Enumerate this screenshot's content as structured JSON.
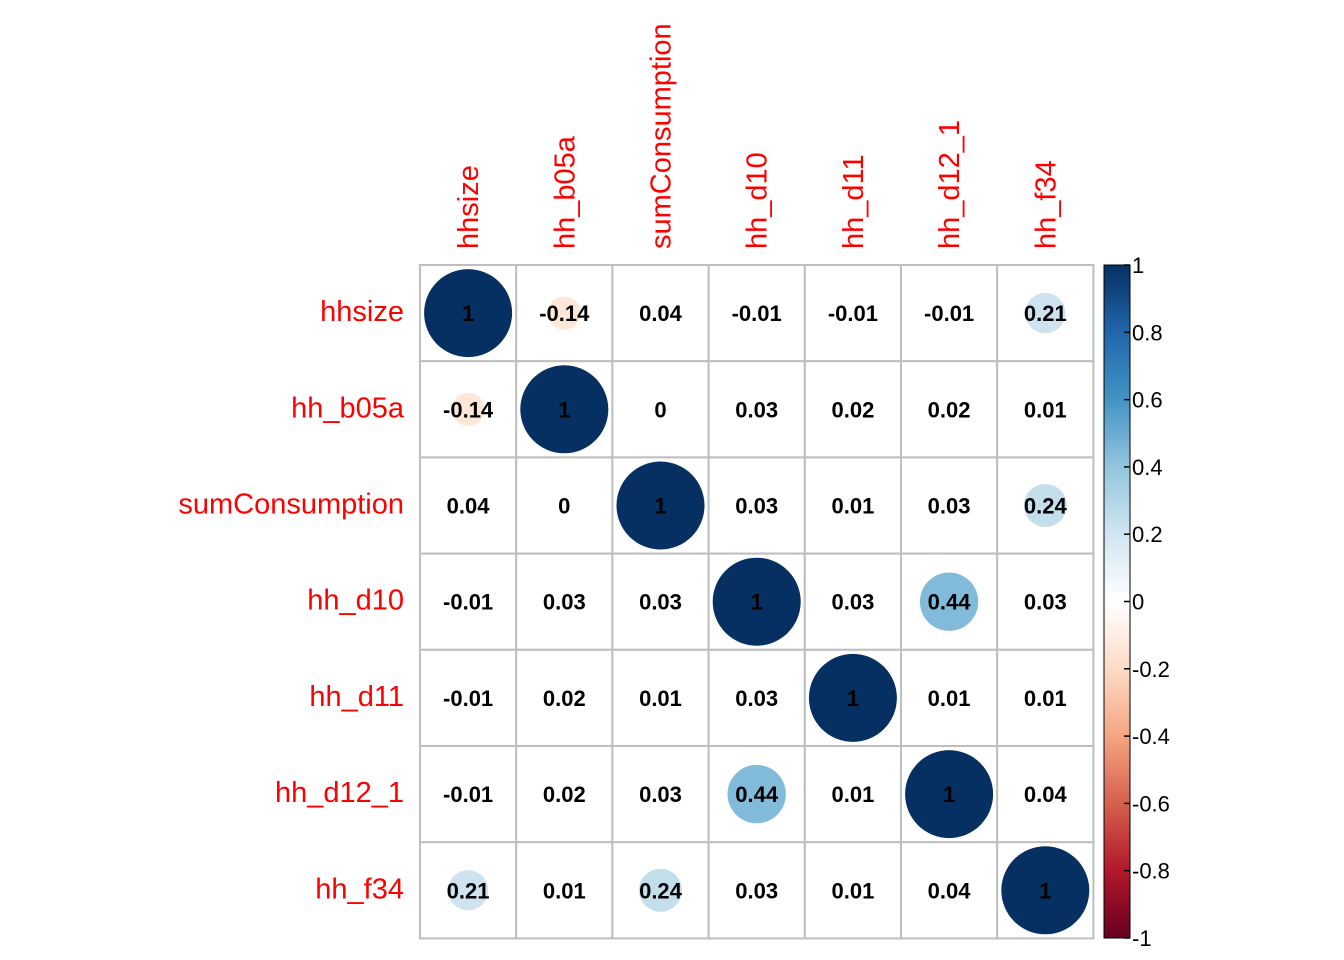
{
  "chart_data": {
    "type": "heatmap",
    "variables": [
      "hhsize",
      "hh_b05a",
      "sumConsumption",
      "hh_d10",
      "hh_d11",
      "hh_d12_1",
      "hh_f34"
    ],
    "value_labels": [
      [
        "1",
        "-0.14",
        "0.04",
        "-0.01",
        "-0.01",
        "-0.01",
        "0.21"
      ],
      [
        "-0.14",
        "1",
        "0",
        "0.03",
        "0.02",
        "0.02",
        "0.01"
      ],
      [
        "0.04",
        "0",
        "1",
        "0.03",
        "0.01",
        "0.03",
        "0.24"
      ],
      [
        "-0.01",
        "0.03",
        "0.03",
        "1",
        "0.03",
        "0.44",
        "0.03"
      ],
      [
        "-0.01",
        "0.02",
        "0.01",
        "0.03",
        "1",
        "0.01",
        "0.01"
      ],
      [
        "-0.01",
        "0.02",
        "0.03",
        "0.44",
        "0.01",
        "1",
        "0.04"
      ],
      [
        "0.21",
        "0.01",
        "0.24",
        "0.03",
        "0.01",
        "0.04",
        "1"
      ]
    ],
    "values": [
      [
        1,
        -0.14,
        0.04,
        -0.01,
        -0.01,
        -0.01,
        0.21
      ],
      [
        -0.14,
        1,
        0,
        0.03,
        0.02,
        0.02,
        0.01
      ],
      [
        0.04,
        0,
        1,
        0.03,
        0.01,
        0.03,
        0.24
      ],
      [
        -0.01,
        0.03,
        0.03,
        1,
        0.03,
        0.44,
        0.03
      ],
      [
        -0.01,
        0.02,
        0.01,
        0.03,
        1,
        0.01,
        0.01
      ],
      [
        -0.01,
        0.02,
        0.03,
        0.44,
        0.01,
        1,
        0.04
      ],
      [
        0.21,
        0.01,
        0.24,
        0.03,
        0.01,
        0.04,
        1
      ]
    ],
    "method": "circle",
    "color_scale": {
      "range": [
        -1,
        1
      ],
      "ticks": [
        "1",
        "0.8",
        "0.6",
        "0.4",
        "0.2",
        "0",
        "-0.2",
        "-0.4",
        "-0.6",
        "-0.8",
        "-1"
      ],
      "tick_values": [
        1,
        0.8,
        0.6,
        0.4,
        0.2,
        0,
        -0.2,
        -0.4,
        -0.6,
        -0.8,
        -1
      ],
      "colors": [
        "#67001F",
        "#B2182B",
        "#D6604D",
        "#F4A582",
        "#FDDBC7",
        "#FFFFFF",
        "#D1E5F0",
        "#92C5DE",
        "#4393C3",
        "#2166AC",
        "#053061"
      ]
    },
    "label_color": "#FF0000",
    "grid_color": "#BEBEBE"
  }
}
